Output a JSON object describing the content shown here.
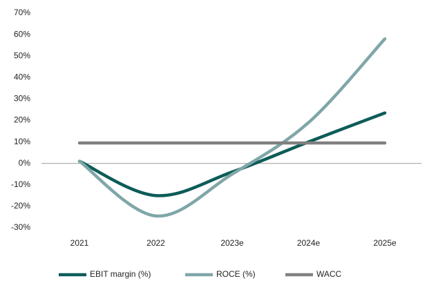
{
  "chart_data": {
    "type": "line",
    "categories": [
      "2021",
      "2022",
      "2023e",
      "2024e",
      "2025e"
    ],
    "series": [
      {
        "name": "EBIT margin (%)",
        "color": "#0d5c58",
        "values": [
          1,
          -15,
          -4,
          10,
          23.5
        ]
      },
      {
        "name": "ROCE (%)",
        "color": "#7fa6a8",
        "values": [
          1,
          -24.5,
          -5,
          19,
          58
        ]
      },
      {
        "name": "WACC",
        "color": "#808080",
        "values": [
          9.5,
          9.5,
          9.5,
          9.5,
          9.5
        ]
      }
    ],
    "ylim": [
      -30,
      70
    ],
    "yticks": [
      {
        "value": -30,
        "label": "-30%"
      },
      {
        "value": -20,
        "label": "-20%"
      },
      {
        "value": -10,
        "label": "-10%"
      },
      {
        "value": 0,
        "label": "0%"
      },
      {
        "value": 10,
        "label": "10%"
      },
      {
        "value": 20,
        "label": "20%"
      },
      {
        "value": 30,
        "label": "30%"
      },
      {
        "value": 40,
        "label": "40%"
      },
      {
        "value": 50,
        "label": "50%"
      },
      {
        "value": 60,
        "label": "60%"
      },
      {
        "value": 70,
        "label": "70%"
      }
    ],
    "smooth": true,
    "legend": "bottom"
  }
}
